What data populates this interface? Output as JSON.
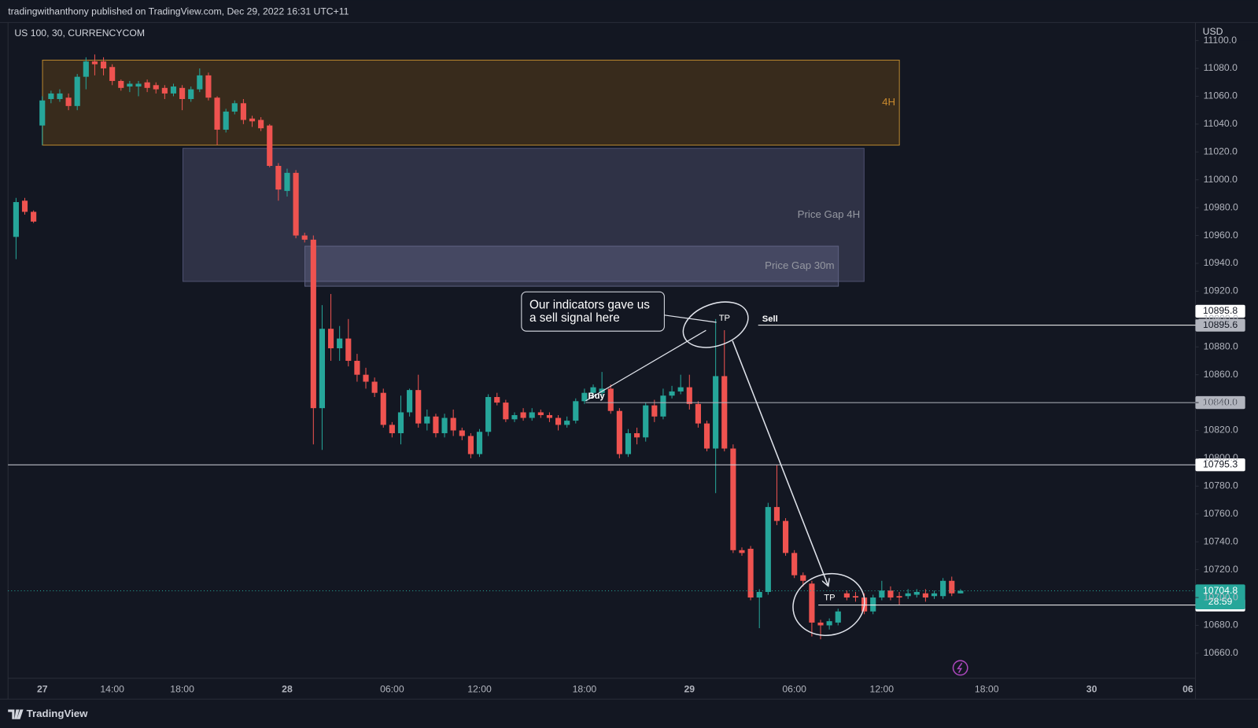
{
  "header": "tradingwithanthony published on TradingView.com, Dec 29, 2022 16:31 UTC+11",
  "footer": "TradingView",
  "chart_data": {
    "type": "candlestick",
    "title": "US 100, 30, CURRENCYCOM",
    "currency": "USD",
    "up_color": "#26a69a",
    "down_color": "#ef5350",
    "grid": false,
    "categories": [
      null,
      null,
      null,
      "27",
      null,
      null,
      null,
      null,
      null,
      null,
      null,
      "14:00",
      null,
      null,
      null,
      null,
      null,
      null,
      null,
      "18:00",
      null,
      null,
      null,
      null,
      null,
      null,
      null,
      null,
      null,
      null,
      null,
      "28",
      null,
      null,
      null,
      null,
      null,
      null,
      null,
      null,
      null,
      null,
      null,
      "06:00",
      null,
      null,
      null,
      null,
      null,
      null,
      null,
      null,
      null,
      "12:00",
      null,
      null,
      null,
      null,
      null,
      null,
      null,
      null,
      null,
      null,
      null,
      "18:00",
      null,
      null,
      null,
      null,
      null,
      null,
      null,
      null,
      null,
      null,
      null,
      "29",
      null,
      null,
      null,
      null,
      null,
      null,
      null,
      null,
      null,
      null,
      null,
      "06:00",
      null,
      null,
      null,
      null,
      null,
      null,
      null,
      null,
      null,
      "12:00",
      null,
      null,
      null,
      null,
      null,
      null,
      null,
      null,
      null,
      null,
      null,
      "18:00",
      null,
      null,
      null,
      null,
      null,
      null,
      null,
      null,
      null,
      null,
      null,
      "30",
      null,
      null,
      null,
      null,
      null,
      null,
      null,
      null,
      null,
      null,
      "06"
    ],
    "open": [
      10959,
      10985,
      10977,
      11039,
      11058,
      11058,
      11059,
      11053,
      11074,
      11085,
      11085,
      11081,
      11071,
      11067,
      11067,
      11070,
      11068,
      11066,
      11062,
      11066,
      11058,
      11065,
      11075,
      11059,
      11036,
      11049,
      11055,
      11044,
      11043,
      11039,
      11010,
      10992,
      11005,
      10960,
      10957,
      10836,
      10893,
      10879,
      10886,
      10870,
      10860,
      10855,
      10847,
      10824,
      10818,
      10833,
      10849,
      10825,
      10830,
      10818,
      10829,
      10820,
      10816,
      10803,
      10819,
      10844,
      10840,
      10828,
      10833,
      10829,
      10833,
      10831,
      10829,
      10824,
      10827,
      10841,
      10847,
      10847,
      10850,
      10834,
      10803,
      10818,
      10815,
      10838,
      10830,
      10845,
      10848,
      10851,
      10839,
      10825,
      10807,
      10859,
      10807,
      10734,
      10735,
      10700,
      10704,
      10765,
      10755,
      10732,
      10716,
      10710,
      10682,
      10680,
      10682,
      10703,
      10701,
      10700,
      10690,
      10700,
      10705,
      10701,
      10701,
      10702,
      10703,
      10701,
      10701,
      10712,
      10703,
      null,
      null,
      null,
      null,
      null,
      null,
      null,
      null,
      null,
      null,
      null,
      null,
      null,
      null,
      null,
      null,
      null,
      null,
      null,
      null,
      null,
      null,
      null,
      null,
      null,
      null
    ],
    "high": [
      10987,
      10987,
      10978,
      11060,
      11064,
      11065,
      11062,
      11076,
      11088,
      11090,
      11088,
      11083,
      11072,
      11071,
      11071,
      11072,
      11070,
      11068,
      11069,
      11068,
      11067,
      11080,
      11077,
      11060,
      11051,
      11057,
      11058,
      11046,
      11045,
      11040,
      11012,
      11008,
      11007,
      10962,
      10960,
      10910,
      10918,
      10895,
      10900,
      10875,
      10865,
      10858,
      10850,
      10826,
      10845,
      10850,
      10860,
      10835,
      10832,
      10832,
      10835,
      10822,
      10818,
      10821,
      10846,
      10847,
      10842,
      10833,
      10836,
      10836,
      10835,
      10833,
      10831,
      10830,
      10843,
      10850,
      10853,
      10862,
      10853,
      10836,
      10821,
      10822,
      10840,
      10842,
      10850,
      10852,
      10860,
      10860,
      10841,
      10827,
      10900,
      10892,
      10810,
      10736,
      10737,
      10706,
      10768,
      10795,
      10757,
      10734,
      10718,
      10712,
      10684,
      10685,
      10692,
      10705,
      10704,
      10703,
      10702,
      10712,
      10708,
      10704,
      10706,
      10706,
      10706,
      10705,
      10714,
      10715,
      10706,
      null,
      null,
      null,
      null,
      null,
      null,
      null,
      null,
      null,
      null,
      null,
      null,
      null,
      null,
      null,
      null,
      null,
      null,
      null,
      null,
      null,
      null,
      null,
      null,
      null,
      null
    ],
    "low": [
      10943,
      10975,
      10969,
      11025,
      11055,
      11056,
      11050,
      11050,
      11065,
      11075,
      11075,
      11068,
      11064,
      11063,
      11060,
      11063,
      11062,
      11058,
      11060,
      11050,
      11056,
      11063,
      11057,
      11025,
      11034,
      11047,
      11040,
      11038,
      11035,
      11009,
      10985,
      10988,
      10958,
      10955,
      10810,
      10806,
      10870,
      10870,
      10866,
      10855,
      10850,
      10844,
      10822,
      10815,
      10810,
      10830,
      10822,
      10820,
      10815,
      10815,
      10816,
      10813,
      10800,
      10801,
      10816,
      10838,
      10826,
      10826,
      10827,
      10827,
      10829,
      10826,
      10820,
      10822,
      10825,
      10839,
      10845,
      10845,
      10832,
      10800,
      10801,
      10810,
      10812,
      10826,
      10828,
      10843,
      10846,
      10835,
      10822,
      10805,
      10775,
      10805,
      10732,
      10730,
      10698,
      10678,
      10702,
      10752,
      10730,
      10714,
      10708,
      10672,
      10670,
      10677,
      10680,
      10698,
      10697,
      10688,
      10688,
      10698,
      10698,
      10695,
      10699,
      10700,
      10697,
      10699,
      10699,
      10701,
      10703,
      null,
      null,
      null,
      null,
      null,
      null,
      null,
      null,
      null,
      null,
      null,
      null,
      null,
      null,
      null,
      null,
      null,
      null,
      null,
      null,
      null,
      null,
      null,
      null,
      null,
      null
    ],
    "close": [
      10984,
      10977,
      10970,
      11057,
      11062,
      11062,
      11053,
      11074,
      11085,
      11083,
      11080,
      11071,
      11066,
      11069,
      11069,
      11066,
      11065,
      11062,
      11067,
      11058,
      11065,
      11075,
      11059,
      11036,
      11049,
      11055,
      11043,
      11042,
      11037,
      11010,
      10993,
      11005,
      10960,
      10957,
      10836,
      10893,
      10879,
      10886,
      10870,
      10860,
      10855,
      10847,
      10824,
      10818,
      10833,
      10849,
      10825,
      10830,
      10818,
      10829,
      10820,
      10816,
      10803,
      10819,
      10844,
      10840,
      10828,
      10831,
      10829,
      10833,
      10831,
      10829,
      10824,
      10827,
      10841,
      10847,
      10851,
      10850,
      10834,
      10803,
      10818,
      10815,
      10838,
      10830,
      10845,
      10848,
      10851,
      10839,
      10825,
      10807,
      10859,
      10807,
      10734,
      10732,
      10700,
      10704,
      10765,
      10755,
      10732,
      10716,
      10712,
      10682,
      10680,
      10683,
      10690,
      10700,
      10700,
      10690,
      10700,
      10705,
      10700,
      10700,
      10703,
      10704,
      10700,
      10703,
      10712,
      10703,
      10704.8,
      null,
      null,
      null,
      null,
      null,
      null,
      null,
      null,
      null,
      null,
      null,
      null,
      null,
      null,
      null,
      null,
      null,
      null,
      null,
      null,
      null,
      null,
      null,
      null,
      null,
      null
    ],
    "countdown": "28:59",
    "ylim": [
      10642,
      11113
    ],
    "yticks": [
      {
        "value": 10660,
        "label": "10660.0"
      },
      {
        "value": 10680,
        "label": "10680.0"
      },
      {
        "value": 10700,
        "label": "10700.0"
      },
      {
        "value": 10720,
        "label": "10720.0"
      },
      {
        "value": 10740,
        "label": "10740.0"
      },
      {
        "value": 10760,
        "label": "10760.0"
      },
      {
        "value": 10780,
        "label": "10780.0"
      },
      {
        "value": 10800,
        "label": "10800.0"
      },
      {
        "value": 10820,
        "label": "10820.0"
      },
      {
        "value": 10840,
        "label": "10840.0"
      },
      {
        "value": 10860,
        "label": "10860.0"
      },
      {
        "value": 10880,
        "label": "10880.0"
      },
      {
        "value": 10900,
        "label": "10900.0"
      },
      {
        "value": 10920,
        "label": "10920.0"
      },
      {
        "value": 10940,
        "label": "10940.0"
      },
      {
        "value": 10960,
        "label": "10960.0"
      },
      {
        "value": 10980,
        "label": "10980.0"
      },
      {
        "value": 11000,
        "label": "11000.0"
      },
      {
        "value": 11020,
        "label": "11020.0"
      },
      {
        "value": 11040,
        "label": "11040.0"
      },
      {
        "value": 11060,
        "label": "11060.0"
      },
      {
        "value": 11080,
        "label": "11080.0"
      },
      {
        "value": 11100,
        "label": "11100.0"
      }
    ],
    "price_lines": [
      10895.8,
      10895.6,
      {
        "value": 10840,
        "label": "10840.0"
      },
      10795.3,
      10694.6
    ],
    "annotations": {
      "zone_4h": "4H",
      "gap_4h": "Price Gap 4H",
      "gap_30m": "Price Gap 30m",
      "callout": [
        "Our indicators gave us",
        "a sell signal here"
      ],
      "tp_top": "TP",
      "sell": "Sell",
      "buy": "Buy",
      "tp_bottom": "TP"
    }
  }
}
